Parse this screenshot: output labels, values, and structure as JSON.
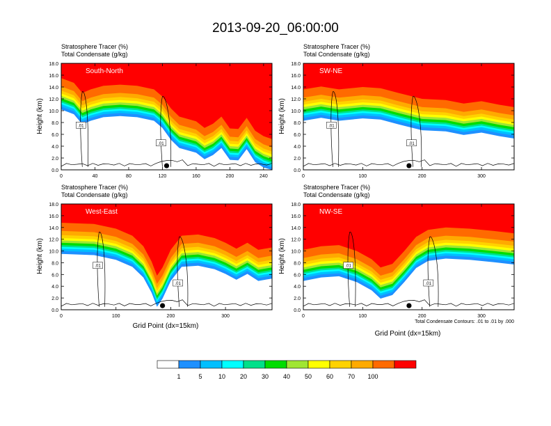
{
  "title": "2013-09-20_06:00:00",
  "panel_label_line1": "Stratosphere Tracer   (%)",
  "panel_label_line2": "Total Condensate   (g/kg)",
  "ylabel": "Height (km)",
  "xlabel": "Grid Point (dx=15km)",
  "contour_note": "Total Condensate Contours: .01 to .01 by .000",
  "contour_label": ".01",
  "colors": {
    "levels": [
      "#ffffff",
      "#1e90ff",
      "#00bfff",
      "#00ffff",
      "#00e08a",
      "#00dd00",
      "#a0e632",
      "#ffff00",
      "#ffd200",
      "#ffaa00",
      "#ff6a00",
      "#ff0000"
    ],
    "boundaries": [
      "1",
      "5",
      "10",
      "20",
      "30",
      "40",
      "50",
      "60",
      "70",
      "100"
    ]
  },
  "chart_data": [
    {
      "type": "heatmap",
      "name": "South-North",
      "xticks": [
        "0",
        "40",
        "80",
        "120",
        "160",
        "200",
        "240"
      ],
      "xlim": [
        0,
        250
      ],
      "yticks": [
        "0.0",
        "2.0",
        "4.0",
        "6.0",
        "8.0",
        "10.0",
        "12.0",
        "14.0",
        "16.0",
        "18.0"
      ],
      "ylim": [
        0,
        18
      ],
      "tracer_boundary_height_km": [
        [
          0,
          15.5
        ],
        [
          15,
          14.7
        ],
        [
          25,
          13.0
        ],
        [
          35,
          13.6
        ],
        [
          50,
          14.2
        ],
        [
          70,
          14.4
        ],
        [
          90,
          14.2
        ],
        [
          110,
          13.6
        ],
        [
          120,
          12.4
        ],
        [
          130,
          10.4
        ],
        [
          140,
          9.0
        ],
        [
          150,
          8.6
        ],
        [
          160,
          8.2
        ],
        [
          170,
          7.1
        ],
        [
          180,
          7.8
        ],
        [
          190,
          9.0
        ],
        [
          200,
          7.0
        ],
        [
          210,
          6.9
        ],
        [
          220,
          8.8
        ],
        [
          230,
          6.6
        ],
        [
          240,
          5.7
        ],
        [
          250,
          5.2
        ]
      ],
      "marker_x": 125
    },
    {
      "type": "heatmap",
      "name": "SW-NE",
      "xticks": [
        "0",
        "100",
        "200",
        "300"
      ],
      "xlim": [
        0,
        355
      ],
      "yticks": [
        "0.0",
        "2.0",
        "4.0",
        "6.0",
        "8.0",
        "10.0",
        "12.0",
        "14.0",
        "16.0",
        "18.0"
      ],
      "ylim": [
        0,
        18
      ],
      "tracer_boundary_height_km": [
        [
          0,
          13.6
        ],
        [
          30,
          14.1
        ],
        [
          60,
          13.6
        ],
        [
          100,
          14.0
        ],
        [
          130,
          13.8
        ],
        [
          160,
          13.0
        ],
        [
          200,
          12.0
        ],
        [
          240,
          11.8
        ],
        [
          270,
          11.2
        ],
        [
          300,
          11.6
        ],
        [
          330,
          11.0
        ],
        [
          355,
          10.6
        ]
      ],
      "marker_x": 178
    },
    {
      "type": "heatmap",
      "name": "West-East",
      "xticks": [
        "0",
        "100",
        "200",
        "300"
      ],
      "xlim": [
        0,
        385
      ],
      "yticks": [
        "0.0",
        "2.0",
        "4.0",
        "6.0",
        "8.0",
        "10.0",
        "12.0",
        "14.0",
        "16.0",
        "18.0"
      ],
      "ylim": [
        0,
        18
      ],
      "tracer_boundary_height_km": [
        [
          0,
          14.8
        ],
        [
          60,
          14.6
        ],
        [
          100,
          13.8
        ],
        [
          130,
          12.6
        ],
        [
          150,
          10.8
        ],
        [
          165,
          8.2
        ],
        [
          175,
          5.8
        ],
        [
          185,
          7.2
        ],
        [
          200,
          10.2
        ],
        [
          220,
          12.6
        ],
        [
          250,
          12.8
        ],
        [
          280,
          12.2
        ],
        [
          300,
          11.4
        ],
        [
          320,
          10.4
        ],
        [
          340,
          11.4
        ],
        [
          360,
          10.2
        ],
        [
          385,
          10.6
        ]
      ],
      "marker_x": 185
    },
    {
      "type": "heatmap",
      "name": "NW-SE",
      "xticks": [
        "0",
        "100",
        "200",
        "300"
      ],
      "xlim": [
        0,
        355
      ],
      "yticks": [
        "0.0",
        "2.0",
        "4.0",
        "6.0",
        "8.0",
        "10.0",
        "12.0",
        "14.0",
        "16.0",
        "18.0"
      ],
      "ylim": [
        0,
        18
      ],
      "tracer_boundary_height_km": [
        [
          0,
          10.2
        ],
        [
          30,
          10.8
        ],
        [
          60,
          11.0
        ],
        [
          90,
          10.0
        ],
        [
          115,
          8.6
        ],
        [
          130,
          7.2
        ],
        [
          150,
          7.8
        ],
        [
          170,
          10.0
        ],
        [
          190,
          12.4
        ],
        [
          210,
          13.6
        ],
        [
          240,
          14.0
        ],
        [
          280,
          13.8
        ],
        [
          320,
          13.4
        ],
        [
          355,
          13.0
        ]
      ],
      "marker_x": 178
    }
  ]
}
